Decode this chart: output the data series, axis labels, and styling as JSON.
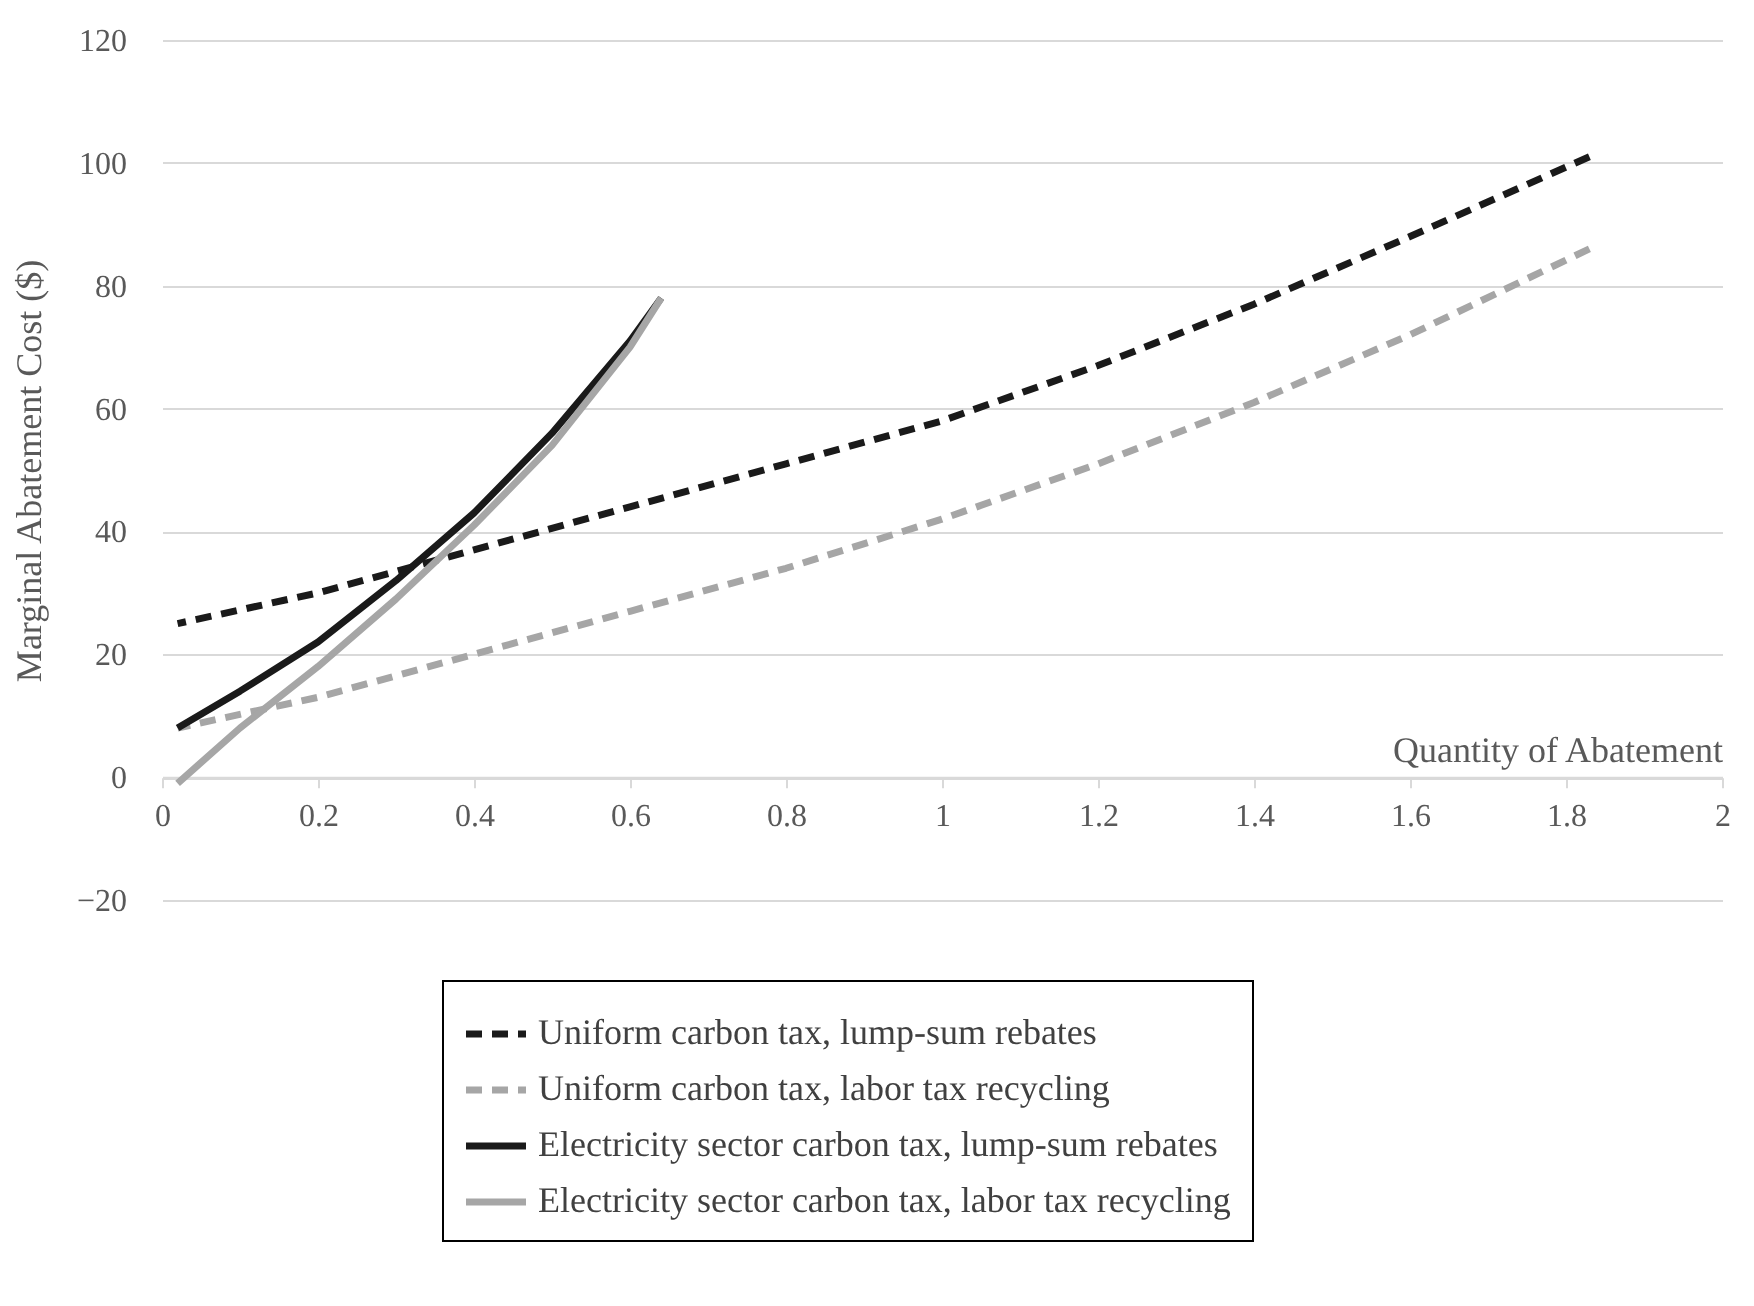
{
  "chart_data": {
    "type": "line",
    "xlabel": "Quantity of Abatement",
    "ylabel": "Marginal Abatement Cost ($)",
    "xlim": [
      0,
      2
    ],
    "xticks": [
      0,
      0.2,
      0.4,
      0.6,
      0.8,
      1,
      1.2,
      1.4,
      1.6,
      1.8,
      2
    ],
    "ylim": [
      -20,
      120
    ],
    "yticks": [
      -20,
      0,
      20,
      40,
      60,
      80,
      100,
      120
    ],
    "grid": "y",
    "legend": "bottom",
    "marker": "none",
    "series": [
      {
        "name": "Uniform carbon tax, lump-sum rebates",
        "color": "#1a1a1a",
        "line_style": "dashed",
        "x": [
          0.02,
          0.2,
          0.4,
          0.6,
          0.8,
          1.0,
          1.2,
          1.4,
          1.6,
          1.83
        ],
        "values": [
          25,
          30,
          37,
          44,
          51,
          58,
          67,
          77,
          88,
          101
        ]
      },
      {
        "name": "Uniform carbon tax, labor tax recycling",
        "color": "#a6a6a6",
        "line_style": "dashed",
        "x": [
          0.02,
          0.2,
          0.4,
          0.6,
          0.8,
          1.0,
          1.2,
          1.4,
          1.6,
          1.83
        ],
        "values": [
          8,
          13,
          20,
          27,
          34,
          42,
          51,
          61,
          72,
          86
        ]
      },
      {
        "name": "Electricity sector carbon tax, lump-sum rebates",
        "color": "#1a1a1a",
        "line_style": "solid",
        "x": [
          0.02,
          0.1,
          0.2,
          0.3,
          0.4,
          0.5,
          0.6,
          0.64
        ],
        "values": [
          8,
          14,
          22,
          32,
          43,
          56,
          71,
          78
        ]
      },
      {
        "name": "Electricity sector carbon tax, labor tax recycling",
        "color": "#a6a6a6",
        "line_style": "solid",
        "x": [
          0.02,
          0.1,
          0.2,
          0.3,
          0.4,
          0.5,
          0.6,
          0.64
        ],
        "values": [
          -1,
          8,
          18,
          29,
          41,
          54,
          70,
          78
        ]
      }
    ]
  }
}
